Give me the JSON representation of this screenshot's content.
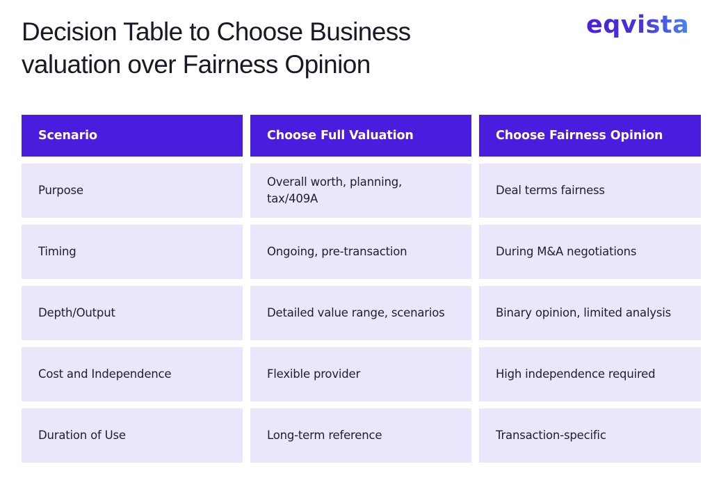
{
  "header": {
    "title_line1": "Decision Table to Choose Business",
    "title_line2": "valuation over Fairness Opinion",
    "logo_text": "eqvista"
  },
  "colors": {
    "header_bg": "#4a1cde",
    "row_bg": "#ebe6fb",
    "logo_gradient_start": "#4a1fd8",
    "logo_gradient_end": "#4a86f2",
    "title_text": "#171a26"
  },
  "table": {
    "columns": [
      "Scenario",
      "Choose Full Valuation",
      "Choose Fairness Opinion"
    ],
    "rows": [
      [
        "Purpose",
        "Overall worth, planning, tax/409A",
        "Deal terms fairness"
      ],
      [
        "Timing",
        "Ongoing, pre-transaction",
        "During M&A negotiations"
      ],
      [
        "Depth/Output",
        "Detailed value range, scenarios",
        "Binary opinion, limited analysis"
      ],
      [
        "Cost and Independence",
        "Flexible provider",
        "High independence required"
      ],
      [
        "Duration of Use",
        "Long-term reference",
        "Transaction-specific"
      ]
    ]
  }
}
